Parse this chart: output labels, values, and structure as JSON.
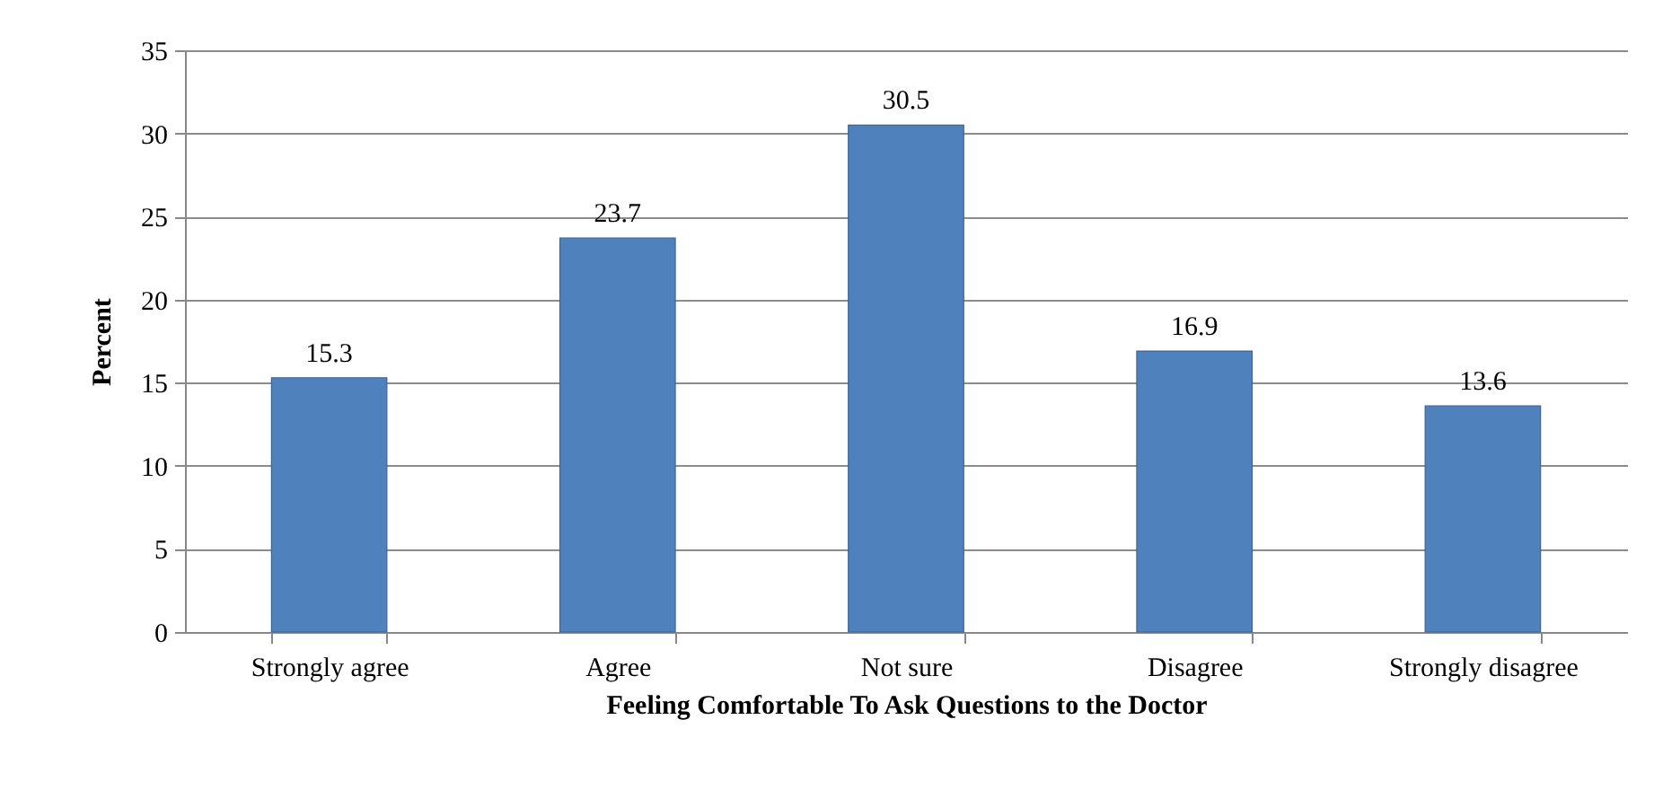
{
  "chart_data": {
    "type": "bar",
    "xlabel": "Feeling Comfortable To Ask Questions to the Doctor",
    "ylabel": "Percent",
    "categories": [
      "Strongly agree",
      "Agree",
      "Not sure",
      "Disagree",
      "Strongly disagree"
    ],
    "values": [
      15.3,
      23.7,
      30.5,
      16.9,
      13.6
    ],
    "color": "#4f81bd",
    "ylim": [
      0,
      35
    ],
    "yticks": [
      0,
      5,
      10,
      15,
      20,
      25,
      30,
      35
    ],
    "grid": "y",
    "data_labels": true
  }
}
